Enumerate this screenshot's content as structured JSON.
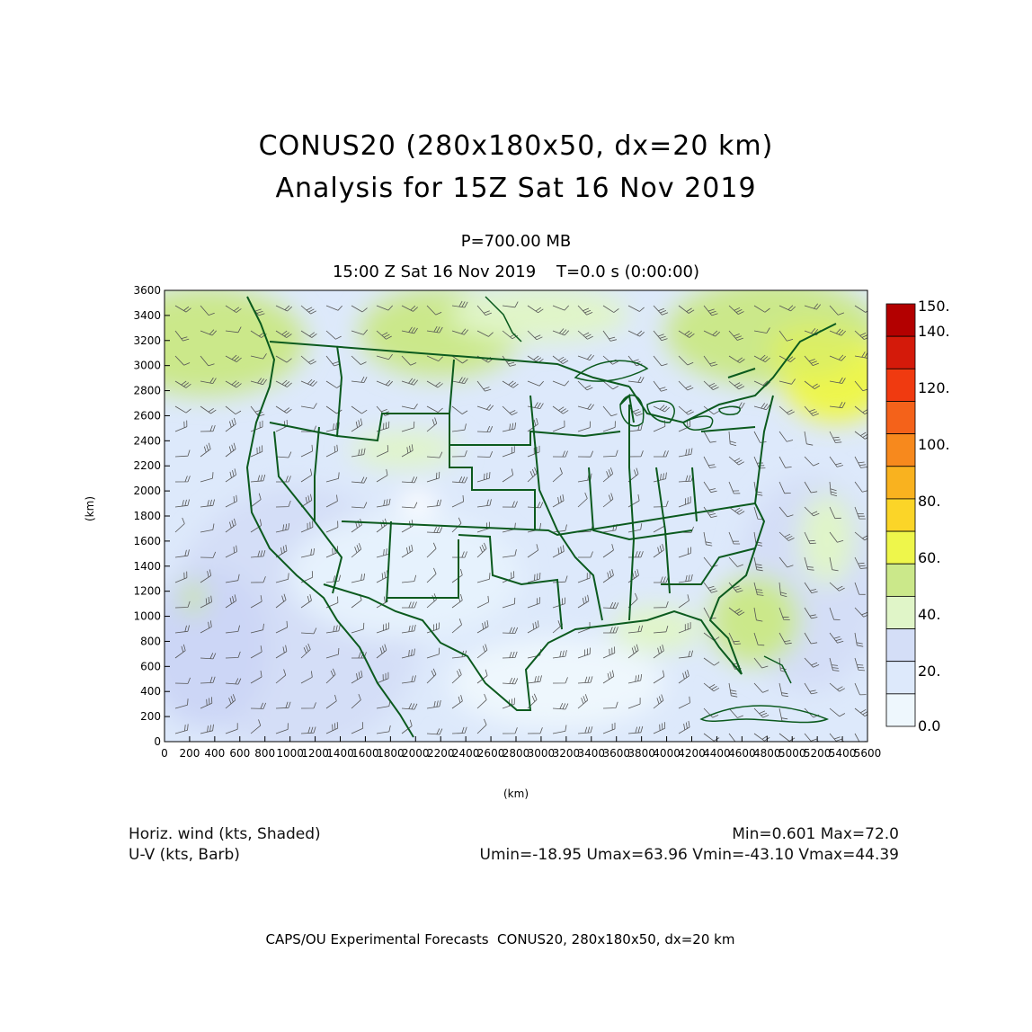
{
  "title_line1": "CONUS20 (280x180x50, dx=20 km)",
  "title_line2": "Analysis for 15Z Sat 16 Nov 2019",
  "level": "P=700.00 MB",
  "valid_time": "15:00 Z Sat 16 Nov 2019    T=0.0 s (0:00:00)",
  "x_axis_label": "(km)",
  "y_axis_label": "(km)",
  "x_ticks": [
    "0",
    "200",
    "400",
    "600",
    "800",
    "1000",
    "1200",
    "1400",
    "1600",
    "1800",
    "2000",
    "2200",
    "2400",
    "2600",
    "2800",
    "3000",
    "3200",
    "3400",
    "3600",
    "3800",
    "4000",
    "4200",
    "4400",
    "4600",
    "4800",
    "5000",
    "5200",
    "5400",
    "5600"
  ],
  "y_ticks": [
    "0",
    "200",
    "400",
    "600",
    "800",
    "1000",
    "1200",
    "1400",
    "1600",
    "1800",
    "2000",
    "2200",
    "2400",
    "2600",
    "2800",
    "3000",
    "3200",
    "3400",
    "3600"
  ],
  "colorbar_labels": [
    "150.",
    "140.",
    "120.",
    "100.",
    "80.",
    "60.",
    "40.",
    "20.",
    "0.0"
  ],
  "colorbar_colors": [
    "#b30000",
    "#d41a0a",
    "#f03a10",
    "#f4621a",
    "#f7891d",
    "#f9b21f",
    "#fbd528",
    "#eef64b",
    "#cbe88a",
    "#e0f5c8",
    "#d4def7",
    "#dde9fb",
    "#eef7fd"
  ],
  "legend_left_1": "Horiz. wind (kts, Shaded)",
  "legend_left_2": "U-V (kts, Barb)",
  "legend_right_1": "Min=0.601 Max=72.0",
  "legend_right_2": "Umin=-18.95 Umax=63.96 Vmin=-43.10 Vmax=44.39",
  "footer": "CAPS/OU Experimental Forecasts  CONUS20, 280x180x50, dx=20 km",
  "map": {
    "boundary_color": "#0b5a1e",
    "field_range_kts": [
      0.601,
      72.0
    ]
  }
}
